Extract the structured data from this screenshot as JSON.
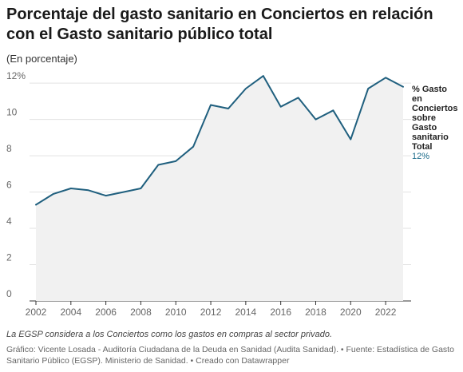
{
  "header": {
    "title": "Porcentaje del gasto sanitario en Conciertos en relación con el Gasto sanitario público total",
    "subtitle": "(En porcentaje)"
  },
  "footer": {
    "note": "La EGSP considera a los Conciertos como los gastos en compras al sector privado.",
    "credits": "Gráfico: Vicente Losada - Auditoría Ciudadana de la Deuda en Sanidad (Audita Sanidad). • Fuente: Estadística de Gasto Sanitario Público (EGSP). Ministerio de Sanidad. • Creado con Datawrapper"
  },
  "colors": {
    "line": "#1f5f7e",
    "area": "#f1f1f1",
    "grid": "#e2e2e2",
    "end_value": "#1a6b8a"
  },
  "chart_data": {
    "type": "area",
    "title": "Porcentaje del gasto sanitario en Conciertos en relación con el Gasto sanitario público total",
    "subtitle": "(En porcentaje)",
    "xlabel": "",
    "ylabel": "",
    "x": [
      2002,
      2003,
      2004,
      2005,
      2006,
      2007,
      2008,
      2009,
      2010,
      2011,
      2012,
      2013,
      2014,
      2015,
      2016,
      2017,
      2018,
      2019,
      2020,
      2021,
      2022,
      2023
    ],
    "series": [
      {
        "name": "% Gasto en Conciertos sobre Gasto sanitario Total",
        "values": [
          5.3,
          5.9,
          6.2,
          6.1,
          5.8,
          6.0,
          6.2,
          7.5,
          7.7,
          8.5,
          10.8,
          10.6,
          11.7,
          12.4,
          10.7,
          11.2,
          10.0,
          10.5,
          8.9,
          11.7,
          12.3,
          11.8
        ]
      }
    ],
    "xlim": [
      2002,
      2023
    ],
    "ylim": [
      0,
      12.5
    ],
    "xticks": [
      "2002",
      "2004",
      "2006",
      "2008",
      "2010",
      "2012",
      "2014",
      "2016",
      "2018",
      "2020",
      "2022"
    ],
    "yticks": [
      "0",
      "2",
      "4",
      "6",
      "8",
      "10",
      "12%"
    ],
    "ytick_values": [
      0,
      2,
      4,
      6,
      8,
      10,
      12
    ],
    "end_label": {
      "lines": [
        "% Gasto",
        "en",
        "Conciertos",
        "sobre",
        "Gasto",
        "sanitario",
        "Total"
      ],
      "value": "12%"
    },
    "grid": true,
    "legend": "none"
  }
}
